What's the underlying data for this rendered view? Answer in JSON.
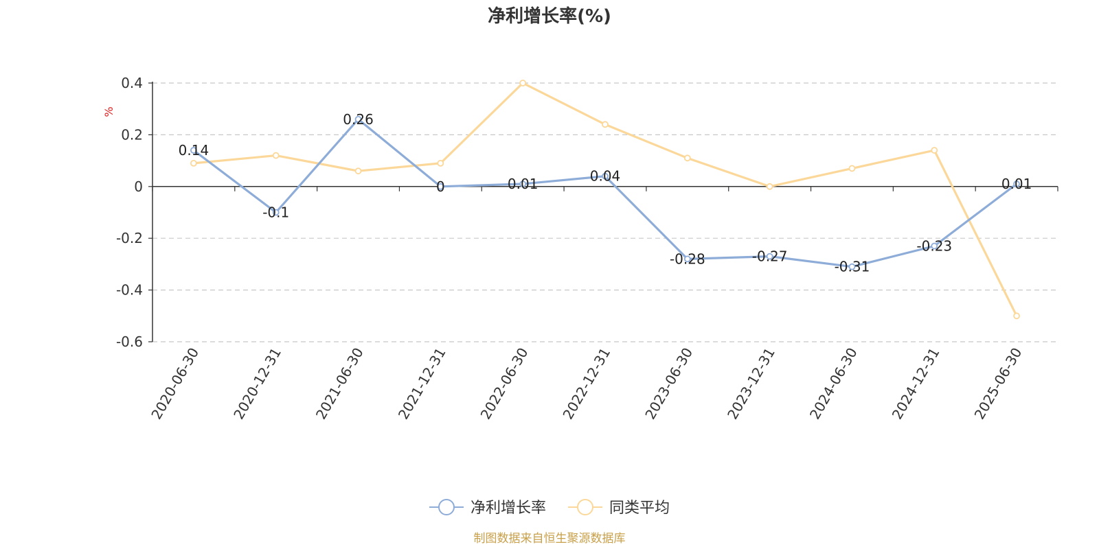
{
  "chart_data": {
    "type": "line",
    "title": "净利增长率(%)",
    "ylabel": "%",
    "xlabel": "",
    "categories": [
      "2020-06-30",
      "2020-12-31",
      "2021-06-30",
      "2021-12-31",
      "2022-06-30",
      "2022-12-31",
      "2023-06-30",
      "2023-12-31",
      "2024-06-30",
      "2024-12-31",
      "2025-06-30"
    ],
    "series": [
      {
        "name": "净利增长率",
        "color": "#8eacd8",
        "values": [
          0.14,
          -0.1,
          0.26,
          0,
          0.01,
          0.04,
          -0.28,
          -0.27,
          -0.31,
          -0.23,
          0.01
        ],
        "data_labels": [
          "0.14",
          "-0.1",
          "0.26",
          "0",
          "0.01",
          "0.04",
          "-0.28",
          "-0.27",
          "-0.31",
          "-0.23",
          "0.01"
        ]
      },
      {
        "name": "同类平均",
        "color": "#fbd89a",
        "values": [
          0.09,
          0.12,
          0.06,
          0.09,
          0.4,
          0.24,
          0.11,
          0.0,
          0.07,
          0.14,
          -0.5
        ]
      }
    ],
    "ylim": [
      -0.6,
      0.4
    ],
    "yticks": [
      0.4,
      0.2,
      0,
      -0.2,
      -0.4,
      -0.6
    ],
    "ytick_labels": [
      "0.4",
      "0.2",
      "0",
      "-0.2",
      "-0.4",
      "-0.6"
    ],
    "grid": true,
    "legend_position": "bottom-center",
    "source": "制图数据来自恒生聚源数据库"
  }
}
